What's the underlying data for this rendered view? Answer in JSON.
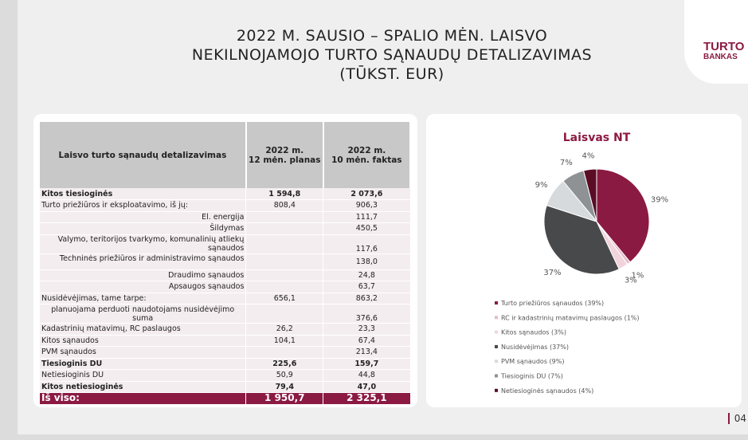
{
  "header": {
    "title_lines": [
      "2022 M. SAUSIO – SPALIO MĖN. LAISVO",
      "NEKILNOJAMOJO TURTO SĄNAUDŲ DETALIZAVIMAS",
      "(TŪKST. EUR)"
    ],
    "logo": [
      "TURTO",
      "BANKAS"
    ]
  },
  "table": {
    "columns": [
      "Laisvo turto sąnaudų detalizavimas",
      "2022 m.\n12 mėn. planas",
      "2022 m.\n10 mėn. faktas"
    ],
    "rows": [
      [
        "Kitos tiesioginės",
        "1 594,8",
        "2 073,6"
      ],
      [
        "Turto priežiūros ir eksploatavimo, iš jų:",
        "808,4",
        "906,3"
      ],
      [
        "El. energija",
        null,
        "111,7"
      ],
      [
        "Šildymas",
        null,
        "450,5"
      ],
      [
        "Valymo, teritorijos tvarkymo, komunalinių atliekų sąnaudos",
        null,
        "117,6"
      ],
      [
        "Techninės priežiūros ir administravimo sąnaudos",
        null,
        "138,0"
      ],
      [
        "Draudimo sąnaudos",
        null,
        "24,8"
      ],
      [
        "Apsaugos sąnaudos",
        null,
        "63,7"
      ],
      [
        "Nusidėvėjimas, tame tarpe:",
        "656,1",
        "863,2"
      ],
      [
        "planuojama perduoti naudotojams nusidėvėjimo suma",
        null,
        "376,6"
      ],
      [
        "Kadastrinių matavimų, RC paslaugos",
        "26,2",
        "23,3"
      ],
      [
        "Kitos sąnaudos",
        "104,1",
        "67,4"
      ],
      [
        "PVM sąnaudos",
        null,
        "213,4"
      ],
      [
        "Tiesioginis DU",
        "225,6",
        "159,7"
      ],
      [
        "Netiesioginis DU",
        "50,9",
        "44,8"
      ],
      [
        "Kitos netiesioginės",
        "79,4",
        "47,0"
      ],
      [
        "Iš viso:",
        "1 950,7",
        "2 325,1"
      ]
    ]
  },
  "chart_data": {
    "type": "pie",
    "title": "Laisvas NT",
    "categories": [
      "Turto priežiūros sąnaudos (39%)",
      "RC ir kadastrinių matavimų paslaugos (1%)",
      "Kitos sąnaudos (3%)",
      "Nusidėvėjimas (37%)",
      "PVM sąnaudos (9%)",
      "Tiesioginis DU (7%)",
      "Netiesioginės sąnaudos (4%)"
    ],
    "values": [
      39,
      1,
      3,
      37,
      9,
      7,
      4
    ],
    "value_labels": [
      "39%",
      "1%",
      "3%",
      "37%",
      "9%",
      "7%",
      "4%"
    ],
    "colors": [
      "#8b1a42",
      "#e3bcc7",
      "#f0d4dc",
      "#48494b",
      "#d6dadc",
      "#8e9295",
      "#5a0d24"
    ]
  },
  "page_number": "04"
}
